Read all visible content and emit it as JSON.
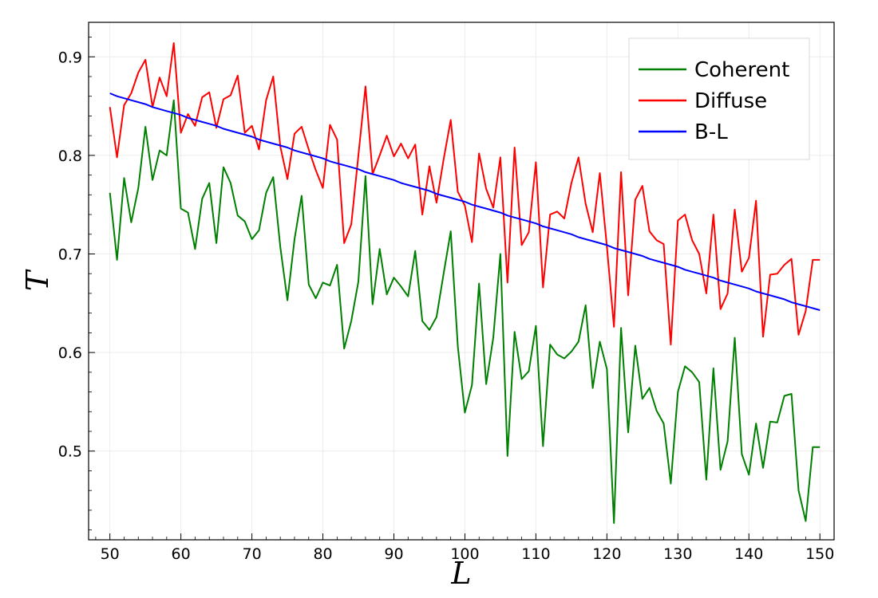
{
  "chart_data": {
    "type": "line",
    "title": "",
    "xlabel": "L",
    "ylabel": "T",
    "xlim": [
      47,
      152
    ],
    "ylim": [
      0.41,
      0.935
    ],
    "xticks": [
      50,
      60,
      70,
      80,
      90,
      100,
      110,
      120,
      130,
      140,
      150
    ],
    "yticks": [
      0.5,
      0.6,
      0.7,
      0.8,
      0.9
    ],
    "xtick_labels": [
      "50",
      "60",
      "70",
      "80",
      "90",
      "100",
      "110",
      "120",
      "130",
      "140",
      "150"
    ],
    "ytick_labels": [
      "0.5",
      "0.6",
      "0.7",
      "0.8",
      "0.9"
    ],
    "grid": true,
    "legend_position": "top-right",
    "x": [
      50,
      51,
      52,
      53,
      54,
      55,
      56,
      57,
      58,
      59,
      60,
      61,
      62,
      63,
      64,
      65,
      66,
      67,
      68,
      69,
      70,
      71,
      72,
      73,
      74,
      75,
      76,
      77,
      78,
      79,
      80,
      81,
      82,
      83,
      84,
      85,
      86,
      87,
      88,
      89,
      90,
      91,
      92,
      93,
      94,
      95,
      96,
      97,
      98,
      99,
      100,
      101,
      102,
      103,
      104,
      105,
      106,
      107,
      108,
      109,
      110,
      111,
      112,
      113,
      114,
      115,
      116,
      117,
      118,
      119,
      120,
      121,
      122,
      123,
      124,
      125,
      126,
      127,
      128,
      129,
      130,
      131,
      132,
      133,
      134,
      135,
      136,
      137,
      138,
      139,
      140,
      141,
      142,
      143,
      144,
      145,
      146,
      147,
      148,
      149,
      150
    ],
    "series": [
      {
        "name": "Coherent",
        "color": "#008000",
        "values": [
          0.762,
          0.694,
          0.777,
          0.732,
          0.767,
          0.829,
          0.775,
          0.805,
          0.8,
          0.856,
          0.746,
          0.742,
          0.705,
          0.756,
          0.772,
          0.711,
          0.788,
          0.772,
          0.739,
          0.733,
          0.715,
          0.724,
          0.762,
          0.778,
          0.707,
          0.653,
          0.715,
          0.759,
          0.669,
          0.655,
          0.671,
          0.668,
          0.689,
          0.604,
          0.632,
          0.672,
          0.779,
          0.649,
          0.705,
          0.659,
          0.676,
          0.667,
          0.657,
          0.703,
          0.632,
          0.623,
          0.636,
          0.68,
          0.723,
          0.606,
          0.539,
          0.567,
          0.67,
          0.568,
          0.615,
          0.7,
          0.495,
          0.621,
          0.573,
          0.581,
          0.627,
          0.505,
          0.608,
          0.598,
          0.594,
          0.601,
          0.611,
          0.648,
          0.564,
          0.611,
          0.583,
          0.427,
          0.625,
          0.519,
          0.607,
          0.553,
          0.564,
          0.541,
          0.528,
          0.467,
          0.56,
          0.586,
          0.58,
          0.57,
          0.471,
          0.584,
          0.481,
          0.51,
          0.615,
          0.497,
          0.476,
          0.528,
          0.483,
          0.53,
          0.529,
          0.556,
          0.558,
          0.46,
          0.429,
          0.504,
          0.504
        ]
      },
      {
        "name": "Diffuse",
        "color": "#ff0000",
        "values": [
          0.849,
          0.798,
          0.851,
          0.863,
          0.884,
          0.897,
          0.849,
          0.879,
          0.86,
          0.914,
          0.823,
          0.842,
          0.83,
          0.859,
          0.864,
          0.828,
          0.857,
          0.861,
          0.881,
          0.823,
          0.83,
          0.806,
          0.856,
          0.88,
          0.809,
          0.776,
          0.822,
          0.829,
          0.806,
          0.785,
          0.767,
          0.831,
          0.816,
          0.711,
          0.73,
          0.8,
          0.87,
          0.781,
          0.8,
          0.82,
          0.799,
          0.812,
          0.797,
          0.811,
          0.74,
          0.789,
          0.752,
          0.796,
          0.836,
          0.763,
          0.749,
          0.712,
          0.802,
          0.766,
          0.747,
          0.798,
          0.671,
          0.808,
          0.709,
          0.722,
          0.793,
          0.666,
          0.74,
          0.743,
          0.736,
          0.772,
          0.798,
          0.751,
          0.722,
          0.782,
          0.707,
          0.626,
          0.783,
          0.658,
          0.755,
          0.769,
          0.723,
          0.714,
          0.71,
          0.608,
          0.734,
          0.74,
          0.714,
          0.7,
          0.66,
          0.74,
          0.644,
          0.66,
          0.745,
          0.682,
          0.696,
          0.754,
          0.616,
          0.679,
          0.68,
          0.689,
          0.695,
          0.618,
          0.642,
          0.694,
          0.694
        ]
      },
      {
        "name": "B-L",
        "color": "#0000ff",
        "values": [
          0.863,
          0.86,
          0.858,
          0.856,
          0.854,
          0.852,
          0.849,
          0.847,
          0.845,
          0.843,
          0.841,
          0.838,
          0.836,
          0.834,
          0.832,
          0.83,
          0.827,
          0.825,
          0.823,
          0.821,
          0.819,
          0.816,
          0.814,
          0.812,
          0.81,
          0.808,
          0.805,
          0.803,
          0.801,
          0.799,
          0.797,
          0.794,
          0.792,
          0.79,
          0.788,
          0.786,
          0.783,
          0.781,
          0.779,
          0.777,
          0.775,
          0.772,
          0.77,
          0.768,
          0.766,
          0.764,
          0.761,
          0.759,
          0.757,
          0.755,
          0.753,
          0.75,
          0.748,
          0.746,
          0.744,
          0.742,
          0.739,
          0.737,
          0.735,
          0.733,
          0.731,
          0.728,
          0.726,
          0.724,
          0.722,
          0.72,
          0.717,
          0.715,
          0.713,
          0.711,
          0.709,
          0.706,
          0.704,
          0.702,
          0.7,
          0.698,
          0.695,
          0.693,
          0.691,
          0.689,
          0.687,
          0.684,
          0.682,
          0.68,
          0.678,
          0.676,
          0.673,
          0.671,
          0.669,
          0.667,
          0.665,
          0.662,
          0.66,
          0.658,
          0.656,
          0.654,
          0.651,
          0.649,
          0.647,
          0.645,
          0.643
        ]
      }
    ]
  }
}
